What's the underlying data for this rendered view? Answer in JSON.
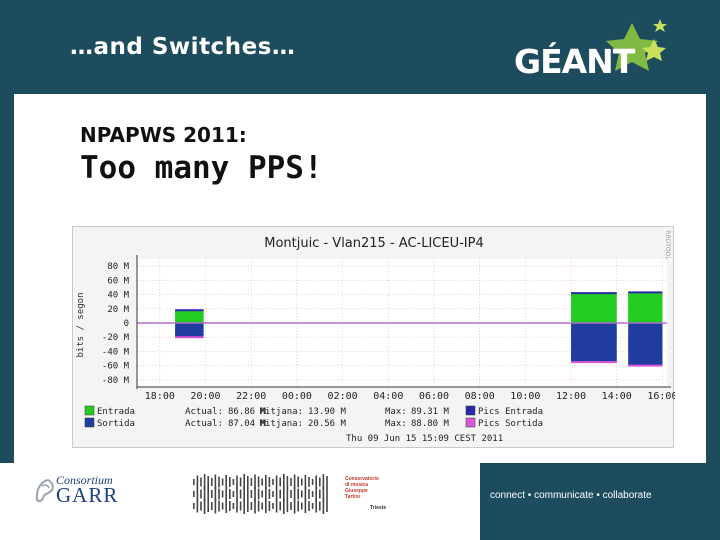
{
  "slide": {
    "title": "…and Switches…",
    "logo_text": "GÉANT",
    "subtitle_small": "NPAPWS 2011:",
    "subtitle_big": "Too many PPS!",
    "tagline": "connect • communicate • collaborate"
  },
  "footer": {
    "garr_top": "Consortium",
    "garr_main": "GARR",
    "conservatorio_lines": [
      "Conservatorio",
      "di musica",
      "Giuseppe",
      "Tartini"
    ],
    "conservatorio_city": "Trieste"
  },
  "chart_data": {
    "type": "area",
    "title": "Montjuic - Vlan215 - AC-LICEU-IP4",
    "ylabel": "bits / segon",
    "side_label": "RRDTOOL",
    "x_ticks": [
      "18:00",
      "20:00",
      "22:00",
      "00:00",
      "02:00",
      "04:00",
      "06:00",
      "08:00",
      "10:00",
      "12:00",
      "14:00",
      "16:00"
    ],
    "y_ticks": [
      "80 M",
      "60 M",
      "40 M",
      "20 M",
      "0",
      "-20 M",
      "-40 M",
      "-60 M",
      "-80 M"
    ],
    "ylim": [
      -90,
      90
    ],
    "colors": {
      "entrada": "#22cc22",
      "sortida": "#1f3c9e",
      "pics_entrada": "#2a2aa8",
      "pics_sortida": "#dd55dd"
    },
    "series": [
      {
        "name": "Entrada",
        "segments": [
          [
            "18:40",
            "19:55",
            18
          ],
          [
            "12:00",
            "14:00",
            42
          ],
          [
            "14:30",
            "16:00",
            43
          ]
        ]
      },
      {
        "name": "Sortida",
        "segments": [
          [
            "18:40",
            "19:55",
            -20
          ],
          [
            "12:00",
            "14:00",
            -55
          ],
          [
            "14:30",
            "16:00",
            -60
          ]
        ]
      }
    ],
    "legend": [
      {
        "label": "Entrada",
        "color": "#22cc22",
        "actual_label": "Actual:",
        "actual": "86.86 M",
        "mitjana_label": "Mitjana:",
        "mitjana": "13.90 M",
        "max_label": "Max:",
        "max": "89.31 M",
        "pics_label": "Pics Entrada",
        "pics_color": "#2a2aa8"
      },
      {
        "label": "Sortida",
        "color": "#1f3c9e",
        "actual_label": "Actual:",
        "actual": "87.04 M",
        "mitjana_label": "Mitjana:",
        "mitjana": "20.56 M",
        "max_label": "Max:",
        "max": "88.80 M",
        "pics_label": "Pics Sortida",
        "pics_color": "#dd55dd"
      }
    ],
    "timestamp": "Thu 09 Jun 15 15:09 CEST 2011"
  }
}
